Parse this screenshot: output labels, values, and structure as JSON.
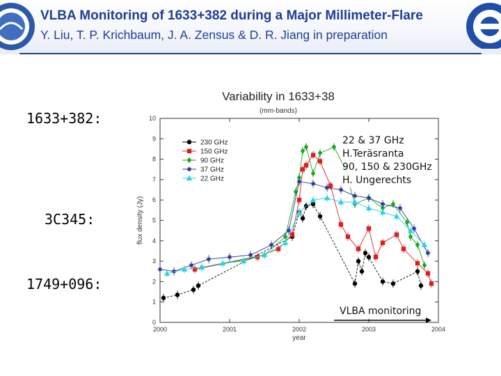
{
  "header": {
    "title": "VLBA Monitoring of 1633+382 during a Major Millimeter-Flare",
    "authors": "Y. Liu, T. P. Krichbaum, J. A. Zensus & D. R. Jiang  in preparation"
  },
  "labels": {
    "source1": "1633+382:",
    "source2": "3C345:",
    "source3": "1749+096:"
  },
  "annotation": {
    "line1": "22 & 37 GHz",
    "line2": "H.Teräsranta",
    "line3": "90, 150 & 230GHz",
    "line4": "H. Ungerechts"
  },
  "vlba": {
    "label": "VLBA monitoring"
  },
  "colors": {
    "header_blue": "#1c3f94"
  },
  "chart_data": {
    "type": "scatter",
    "title": "Variability in 1633+38",
    "subtitle": "(mm-bands)",
    "xlabel": "year",
    "ylabel": "flux density (Jy)",
    "xlim": [
      2000,
      2004
    ],
    "ylim": [
      0,
      10
    ],
    "xticks": [
      2000,
      2001,
      2002,
      2003,
      2004
    ],
    "yticks": [
      0,
      1,
      2,
      3,
      4,
      5,
      6,
      7,
      8,
      9,
      10
    ],
    "legend_position": "top-left",
    "series": [
      {
        "name": "230 GHz",
        "color": "#000000",
        "marker": "circle",
        "x": [
          2000.05,
          2000.25,
          2000.48,
          2000.55,
          2001.9,
          2002.0,
          2002.05,
          2002.1,
          2002.2,
          2002.3,
          2002.8,
          2002.85,
          2002.9,
          2002.95,
          2003.0,
          2003.2,
          2003.35,
          2003.7,
          2003.75
        ],
        "y": [
          1.2,
          1.35,
          1.6,
          1.8,
          4.2,
          5.4,
          5.1,
          5.7,
          5.8,
          5.2,
          1.9,
          3.0,
          2.5,
          3.4,
          3.2,
          2.0,
          1.9,
          2.5,
          1.8
        ]
      },
      {
        "name": "150 GHz",
        "color": "#dd1e1e",
        "marker": "square",
        "x": [
          2000.5,
          2001.4,
          2001.7,
          2001.9,
          2002.0,
          2002.05,
          2002.1,
          2002.2,
          2002.3,
          2002.45,
          2002.6,
          2002.7,
          2002.85,
          2003.0,
          2003.1,
          2003.2,
          2003.4,
          2003.5,
          2003.7,
          2003.85,
          2003.9
        ],
        "y": [
          2.6,
          3.2,
          3.6,
          4.3,
          6.0,
          7.5,
          7.7,
          8.2,
          7.9,
          6.7,
          4.8,
          4.2,
          3.6,
          4.6,
          3.2,
          3.9,
          4.3,
          3.6,
          2.9,
          2.4,
          1.9
        ]
      },
      {
        "name": "90 GHz",
        "color": "#18a818",
        "marker": "diamond",
        "x": [
          2000.6,
          2001.5,
          2001.8,
          2001.95,
          2002.0,
          2002.05,
          2002.1,
          2002.2,
          2002.3,
          2002.5,
          2002.65,
          2002.8,
          2003.0,
          2003.2,
          2003.35,
          2003.55,
          2003.6,
          2003.7,
          2003.8
        ],
        "y": [
          2.7,
          3.3,
          4.2,
          6.4,
          7.1,
          8.4,
          8.6,
          7.3,
          8.3,
          8.6,
          7.6,
          5.8,
          6.1,
          5.6,
          5.8,
          4.9,
          4.2,
          3.8,
          2.8
        ]
      },
      {
        "name": "37 GHz",
        "color": "#2a3a9c",
        "marker": "star",
        "x": [
          2000.0,
          2000.2,
          2000.45,
          2000.7,
          2001.0,
          2001.3,
          2001.6,
          2001.85,
          2002.0,
          2002.2,
          2002.4,
          2002.6,
          2002.8,
          2003.0,
          2003.2,
          2003.45,
          2003.65,
          2003.85
        ],
        "y": [
          2.6,
          2.5,
          2.8,
          3.1,
          3.2,
          3.3,
          3.8,
          4.5,
          6.9,
          6.8,
          6.6,
          6.5,
          6.2,
          6.1,
          5.8,
          5.6,
          4.6,
          3.4
        ]
      },
      {
        "name": "22 GHz",
        "color": "#26d4e4",
        "marker": "triangle",
        "x": [
          2000.1,
          2000.35,
          2000.6,
          2000.9,
          2001.2,
          2001.5,
          2001.8,
          2002.0,
          2002.2,
          2002.4,
          2002.6,
          2002.8,
          2003.0,
          2003.2,
          2003.4,
          2003.6,
          2003.8
        ],
        "y": [
          2.4,
          2.6,
          2.7,
          2.9,
          3.0,
          3.3,
          3.9,
          5.4,
          6.0,
          6.1,
          5.9,
          5.9,
          5.6,
          5.4,
          5.2,
          4.5,
          3.8
        ]
      }
    ]
  }
}
